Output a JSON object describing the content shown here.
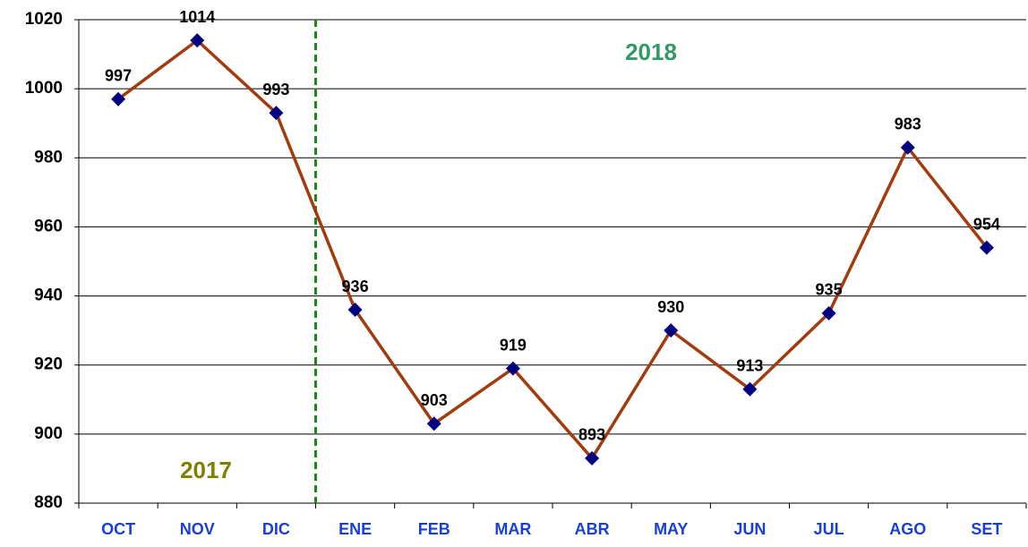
{
  "chart_data": {
    "type": "line",
    "categories": [
      "OCT",
      "NOV",
      "DIC",
      "ENE",
      "FEB",
      "MAR",
      "ABR",
      "MAY",
      "JUN",
      "JUL",
      "AGO",
      "SET"
    ],
    "values": [
      997,
      1014,
      993,
      936,
      903,
      919,
      893,
      930,
      913,
      935,
      983,
      954
    ],
    "color": "#a23c0e",
    "marker_color": "#000080",
    "ylim": [
      880,
      1020
    ],
    "yticks": [
      880,
      900,
      920,
      940,
      960,
      980,
      1000,
      1020
    ],
    "grid": true,
    "annotations": [
      {
        "text": "2017",
        "color": "#808000"
      },
      {
        "text": "2018",
        "color": "#339966"
      }
    ]
  }
}
